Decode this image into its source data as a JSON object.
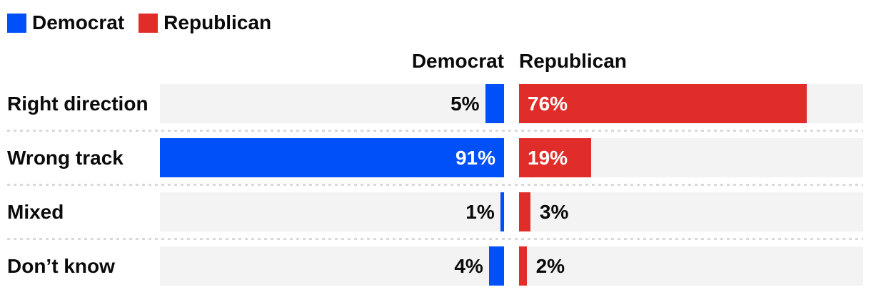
{
  "legend": {
    "items": [
      {
        "label": "Democrat",
        "color": "#0050fa"
      },
      {
        "label": "Republican",
        "color": "#e12d2a"
      }
    ]
  },
  "column_headers": {
    "democrat": "Democrat",
    "republican": "Republican"
  },
  "chart_data": {
    "type": "bar",
    "orientation": "horizontal",
    "unit": "%",
    "scale_max": 91,
    "inside_label_min": 10,
    "categories": [
      "Right direction",
      "Wrong track",
      "Mixed",
      "Don’t know"
    ],
    "series": [
      {
        "name": "Democrat",
        "color": "#0050fa",
        "values": [
          5,
          91,
          1,
          4
        ]
      },
      {
        "name": "Republican",
        "color": "#e12d2a",
        "values": [
          76,
          19,
          3,
          2
        ]
      }
    ],
    "legend_position": "top-left",
    "grid": false
  },
  "colors": {
    "democrat": "#0050fa",
    "republican": "#e12d2a",
    "track": "#f3f3f3",
    "separator": "#d9d9d9",
    "text": "#0a0a0a",
    "background": "#ffffff"
  }
}
